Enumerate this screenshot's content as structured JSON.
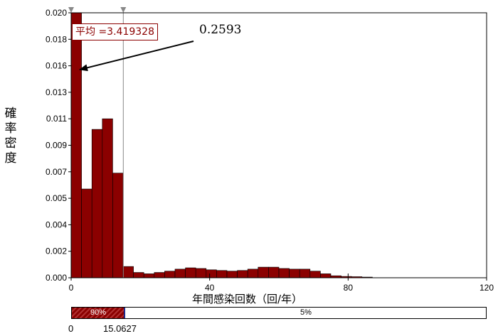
{
  "chart_data": {
    "type": "bar",
    "xlabel": "年間感染回数（回/年）",
    "ylabel": "確率密度",
    "xlim": [
      0,
      120
    ],
    "ylim": [
      0,
      0.02
    ],
    "xticks": [
      "0",
      "40",
      "80",
      "120"
    ],
    "yticks": [
      "0.000",
      "0.002",
      "0.004",
      "0.005",
      "0.007",
      "0.009",
      "0.011",
      "0.013",
      "0.016",
      "0.018",
      "0.020"
    ],
    "bin_width": 3,
    "bins": [
      {
        "x0": 0,
        "value": 0.02
      },
      {
        "x0": 3,
        "value": 0.0067
      },
      {
        "x0": 6,
        "value": 0.0112
      },
      {
        "x0": 9,
        "value": 0.012
      },
      {
        "x0": 12,
        "value": 0.0079
      },
      {
        "x0": 15,
        "value": 0.00085
      },
      {
        "x0": 18,
        "value": 0.0004
      },
      {
        "x0": 21,
        "value": 0.0003
      },
      {
        "x0": 24,
        "value": 0.0004
      },
      {
        "x0": 27,
        "value": 0.0005
      },
      {
        "x0": 30,
        "value": 0.00065
      },
      {
        "x0": 33,
        "value": 0.00075
      },
      {
        "x0": 36,
        "value": 0.0007
      },
      {
        "x0": 39,
        "value": 0.0006
      },
      {
        "x0": 42,
        "value": 0.00055
      },
      {
        "x0": 45,
        "value": 0.0005
      },
      {
        "x0": 48,
        "value": 0.00055
      },
      {
        "x0": 51,
        "value": 0.00065
      },
      {
        "x0": 54,
        "value": 0.0008
      },
      {
        "x0": 57,
        "value": 0.0008
      },
      {
        "x0": 60,
        "value": 0.0007
      },
      {
        "x0": 63,
        "value": 0.00065
      },
      {
        "x0": 66,
        "value": 0.00065
      },
      {
        "x0": 69,
        "value": 0.0005
      },
      {
        "x0": 72,
        "value": 0.0003
      },
      {
        "x0": 75,
        "value": 0.00015
      },
      {
        "x0": 78,
        "value": 0.0001
      },
      {
        "x0": 81,
        "value": 8e-05
      },
      {
        "x0": 84,
        "value": 5e-05
      }
    ],
    "mean_label": "平均 =3.419328",
    "mean_value": 3.419328,
    "annotation": "0.2593",
    "annotation_target": {
      "x": 1.5,
      "y": 0.016
    },
    "marker_lines": [
      0,
      15.0627
    ],
    "range_band": {
      "segments": [
        {
          "label": "90%",
          "x_from": 0,
          "x_to": 15.0627
        },
        {
          "label": "5%",
          "x_from": 15.0627,
          "x_to": 120
        }
      ],
      "bounds_labels": [
        "0",
        "15.0627"
      ]
    }
  }
}
